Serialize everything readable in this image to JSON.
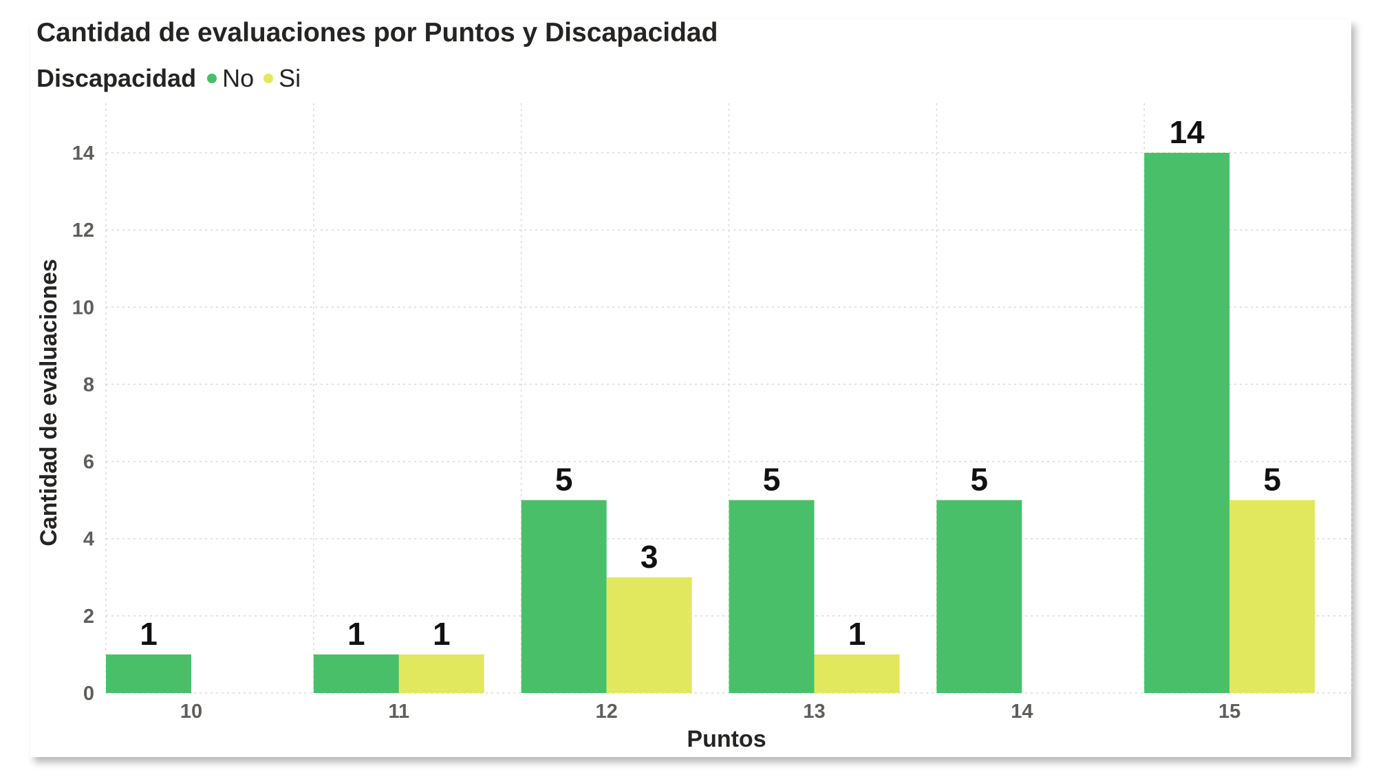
{
  "colors": {
    "no": "#4abf6a",
    "si": "#e2e85e",
    "grid": "#d9d9d9"
  },
  "chart_data": {
    "type": "bar",
    "title": "Cantidad de evaluaciones por Puntos y Discapacidad",
    "legend_title": "Discapacidad",
    "legend_placement": "top-left",
    "xlabel": "Puntos",
    "ylabel": "Cantidad de evaluaciones",
    "categories": [
      "10",
      "11",
      "12",
      "13",
      "14",
      "15"
    ],
    "series": [
      {
        "name": "No",
        "values": [
          1,
          1,
          5,
          5,
          5,
          14
        ]
      },
      {
        "name": "Si",
        "values": [
          null,
          1,
          3,
          1,
          null,
          5
        ]
      }
    ],
    "ylim": [
      0,
      14
    ],
    "yticks": [
      "0",
      "2",
      "4",
      "6",
      "8",
      "10",
      "12",
      "14"
    ],
    "grid": true
  }
}
